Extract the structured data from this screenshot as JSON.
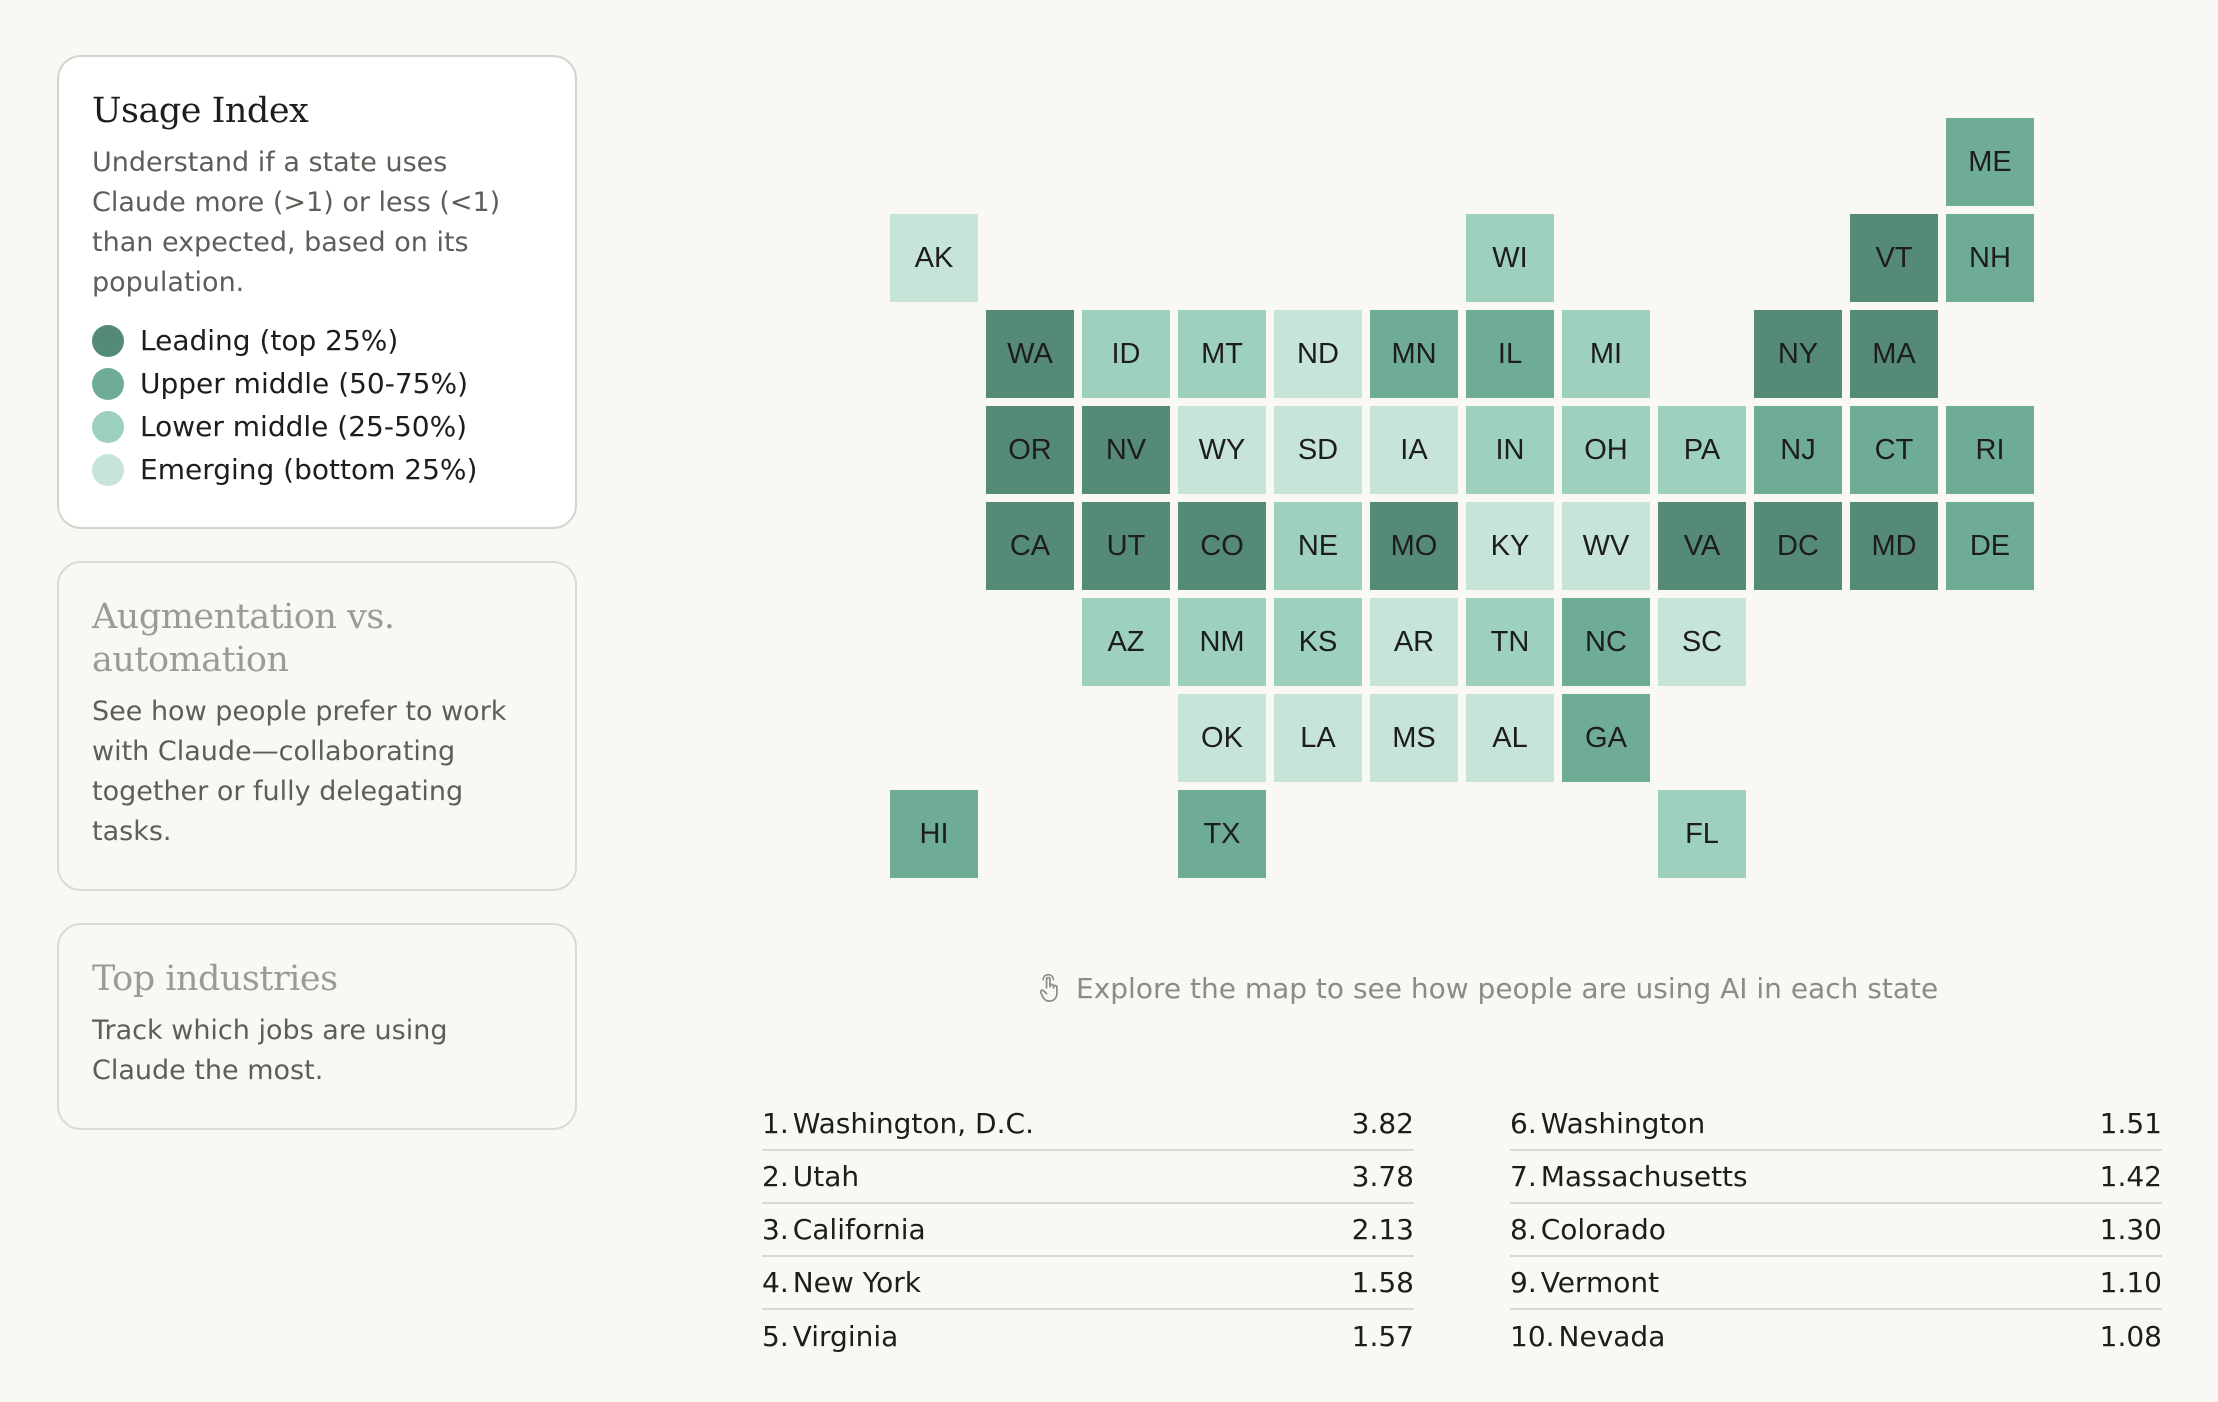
{
  "cards": {
    "usage": {
      "title": "Usage Index",
      "description": "Understand if a state uses Claude more (>1) or less (<1) than expected, based on its population.",
      "legend": [
        {
          "label": "Leading (top 25%)",
          "color": "#558a76"
        },
        {
          "label": "Upper middle (50-75%)",
          "color": "#6fac95"
        },
        {
          "label": "Lower middle (25-50%)",
          "color": "#9dd0bd"
        },
        {
          "label": "Emerging (bottom 25%)",
          "color": "#c7e4d8"
        }
      ]
    },
    "augmentation": {
      "title": "Augmentation vs. automation",
      "description": "See how people prefer to work with Claude—collaborating together or fully delegating tasks."
    },
    "industries": {
      "title": "Top industries",
      "description": "Track which jobs are using Claude the most."
    }
  },
  "tier_colors": [
    "#558a76",
    "#6fac95",
    "#9dd0bd",
    "#c7e4d8"
  ],
  "map": {
    "tiles": [
      {
        "abbr": "ME",
        "row": 0,
        "col": 11,
        "tier": 1
      },
      {
        "abbr": "AK",
        "row": 1,
        "col": 0,
        "tier": 3
      },
      {
        "abbr": "WI",
        "row": 1,
        "col": 6,
        "tier": 2
      },
      {
        "abbr": "VT",
        "row": 1,
        "col": 10,
        "tier": 0
      },
      {
        "abbr": "NH",
        "row": 1,
        "col": 11,
        "tier": 1
      },
      {
        "abbr": "WA",
        "row": 2,
        "col": 1,
        "tier": 0
      },
      {
        "abbr": "ID",
        "row": 2,
        "col": 2,
        "tier": 2
      },
      {
        "abbr": "MT",
        "row": 2,
        "col": 3,
        "tier": 2
      },
      {
        "abbr": "ND",
        "row": 2,
        "col": 4,
        "tier": 3
      },
      {
        "abbr": "MN",
        "row": 2,
        "col": 5,
        "tier": 1
      },
      {
        "abbr": "IL",
        "row": 2,
        "col": 6,
        "tier": 1
      },
      {
        "abbr": "MI",
        "row": 2,
        "col": 7,
        "tier": 2
      },
      {
        "abbr": "NY",
        "row": 2,
        "col": 9,
        "tier": 0
      },
      {
        "abbr": "MA",
        "row": 2,
        "col": 10,
        "tier": 0
      },
      {
        "abbr": "OR",
        "row": 3,
        "col": 1,
        "tier": 0
      },
      {
        "abbr": "NV",
        "row": 3,
        "col": 2,
        "tier": 0
      },
      {
        "abbr": "WY",
        "row": 3,
        "col": 3,
        "tier": 3
      },
      {
        "abbr": "SD",
        "row": 3,
        "col": 4,
        "tier": 3
      },
      {
        "abbr": "IA",
        "row": 3,
        "col": 5,
        "tier": 3
      },
      {
        "abbr": "IN",
        "row": 3,
        "col": 6,
        "tier": 2
      },
      {
        "abbr": "OH",
        "row": 3,
        "col": 7,
        "tier": 2
      },
      {
        "abbr": "PA",
        "row": 3,
        "col": 8,
        "tier": 2
      },
      {
        "abbr": "NJ",
        "row": 3,
        "col": 9,
        "tier": 1
      },
      {
        "abbr": "CT",
        "row": 3,
        "col": 10,
        "tier": 1
      },
      {
        "abbr": "RI",
        "row": 3,
        "col": 11,
        "tier": 1
      },
      {
        "abbr": "CA",
        "row": 4,
        "col": 1,
        "tier": 0
      },
      {
        "abbr": "UT",
        "row": 4,
        "col": 2,
        "tier": 0
      },
      {
        "abbr": "CO",
        "row": 4,
        "col": 3,
        "tier": 0
      },
      {
        "abbr": "NE",
        "row": 4,
        "col": 4,
        "tier": 2
      },
      {
        "abbr": "MO",
        "row": 4,
        "col": 5,
        "tier": 0
      },
      {
        "abbr": "KY",
        "row": 4,
        "col": 6,
        "tier": 3
      },
      {
        "abbr": "WV",
        "row": 4,
        "col": 7,
        "tier": 3
      },
      {
        "abbr": "VA",
        "row": 4,
        "col": 8,
        "tier": 0
      },
      {
        "abbr": "DC",
        "row": 4,
        "col": 9,
        "tier": 0
      },
      {
        "abbr": "MD",
        "row": 4,
        "col": 10,
        "tier": 0
      },
      {
        "abbr": "DE",
        "row": 4,
        "col": 11,
        "tier": 1
      },
      {
        "abbr": "AZ",
        "row": 5,
        "col": 2,
        "tier": 2
      },
      {
        "abbr": "NM",
        "row": 5,
        "col": 3,
        "tier": 2
      },
      {
        "abbr": "KS",
        "row": 5,
        "col": 4,
        "tier": 2
      },
      {
        "abbr": "AR",
        "row": 5,
        "col": 5,
        "tier": 3
      },
      {
        "abbr": "TN",
        "row": 5,
        "col": 6,
        "tier": 2
      },
      {
        "abbr": "NC",
        "row": 5,
        "col": 7,
        "tier": 1
      },
      {
        "abbr": "SC",
        "row": 5,
        "col": 8,
        "tier": 3
      },
      {
        "abbr": "OK",
        "row": 6,
        "col": 3,
        "tier": 3
      },
      {
        "abbr": "LA",
        "row": 6,
        "col": 4,
        "tier": 3
      },
      {
        "abbr": "MS",
        "row": 6,
        "col": 5,
        "tier": 3
      },
      {
        "abbr": "AL",
        "row": 6,
        "col": 6,
        "tier": 3
      },
      {
        "abbr": "GA",
        "row": 6,
        "col": 7,
        "tier": 1
      },
      {
        "abbr": "HI",
        "row": 7,
        "col": 0,
        "tier": 1
      },
      {
        "abbr": "TX",
        "row": 7,
        "col": 3,
        "tier": 1
      },
      {
        "abbr": "FL",
        "row": 7,
        "col": 8,
        "tier": 2
      }
    ]
  },
  "hint": "Explore the map to see how people are using AI in each state",
  "rankings": [
    {
      "rank": "1.",
      "name": "Washington, D.C.",
      "value": "3.82"
    },
    {
      "rank": "2.",
      "name": "Utah",
      "value": "3.78"
    },
    {
      "rank": "3.",
      "name": "California",
      "value": "2.13"
    },
    {
      "rank": "4.",
      "name": "New York",
      "value": "1.58"
    },
    {
      "rank": "5.",
      "name": "Virginia",
      "value": "1.57"
    },
    {
      "rank": "6.",
      "name": "Washington",
      "value": "1.51"
    },
    {
      "rank": "7.",
      "name": "Massachusetts",
      "value": "1.42"
    },
    {
      "rank": "8.",
      "name": "Colorado",
      "value": "1.30"
    },
    {
      "rank": "9.",
      "name": "Vermont",
      "value": "1.10"
    },
    {
      "rank": "10.",
      "name": "Nevada",
      "value": "1.08"
    }
  ]
}
